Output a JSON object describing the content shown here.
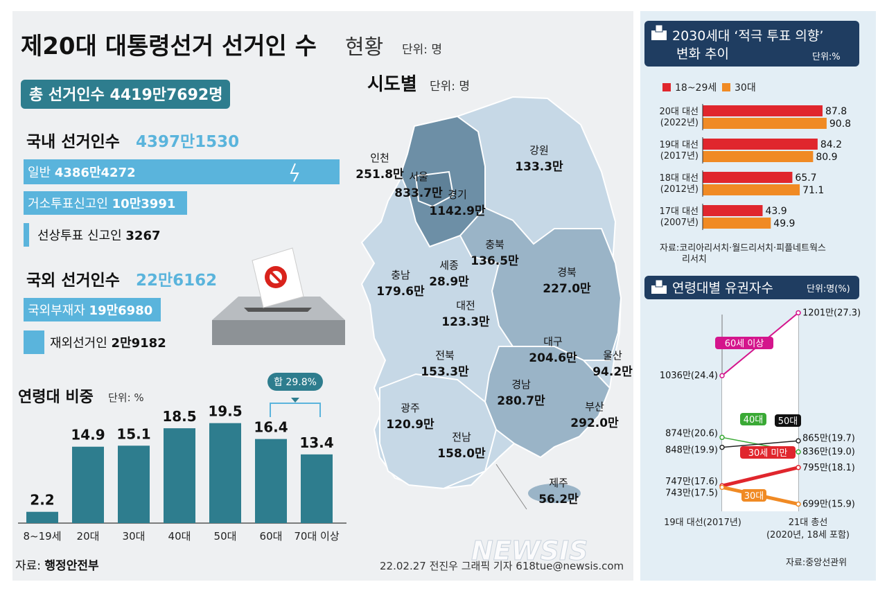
{
  "title": {
    "main": "제20대 대통령선거 선거인 수",
    "sub": "현황",
    "unit": "단위: 명"
  },
  "total": {
    "label": "총 선거인수 4419만7692명"
  },
  "domestic": {
    "label": "국내 선거인수",
    "value": "4397만1530",
    "items": [
      {
        "label": "일반",
        "value": "4386만4272"
      },
      {
        "label": "거소투표신고인",
        "value": "10만3991"
      },
      {
        "label": "선상투표 신고인",
        "value": "3267"
      }
    ]
  },
  "overseas": {
    "label": "국외 선거인수",
    "value": "22만6162",
    "items": [
      {
        "label": "국외부재자",
        "value": "19만6980"
      },
      {
        "label": "재외선거인",
        "value": "2만9182"
      }
    ]
  },
  "age_share": {
    "title": "연령대 비중",
    "unit": "단위: %",
    "sum_note": "합 29.8%"
  },
  "map": {
    "title": "시도별",
    "unit": "단위: 명",
    "regions": [
      {
        "name": "인천",
        "value": "251.8만"
      },
      {
        "name": "서울",
        "value": "833.7만"
      },
      {
        "name": "경기",
        "value": "1142.9만"
      },
      {
        "name": "강원",
        "value": "133.3만"
      },
      {
        "name": "충북",
        "value": "136.5만"
      },
      {
        "name": "충남",
        "value": "179.6만"
      },
      {
        "name": "세종",
        "value": "28.9만"
      },
      {
        "name": "대전",
        "value": "123.3만"
      },
      {
        "name": "경북",
        "value": "227.0만"
      },
      {
        "name": "대구",
        "value": "204.6만"
      },
      {
        "name": "울산",
        "value": "94.2만"
      },
      {
        "name": "전북",
        "value": "153.3만"
      },
      {
        "name": "경남",
        "value": "280.7만"
      },
      {
        "name": "부산",
        "value": "292.0만"
      },
      {
        "name": "광주",
        "value": "120.9만"
      },
      {
        "name": "전남",
        "value": "158.0만"
      },
      {
        "name": "제주",
        "value": "56.2만"
      }
    ]
  },
  "intent": {
    "title1": "2030세대 ‘적극 투표 의향’",
    "title2": "변화 추이",
    "unit": "단위:%",
    "source": "자료:코리아리서치·월드리서치·피플네트웍스",
    "source2": "리서치"
  },
  "voters": {
    "title": "연령대별 유권자수",
    "unit": "단위:명(%)",
    "source": "자료:중앙선관위",
    "x_left": "19대 대선(2017년)",
    "x_right1": "21대 총선",
    "x_right2": "(2020년, 18세 포함)"
  },
  "footer": {
    "source_label": "자료:",
    "source_value": "행정안전부",
    "credit": "22.02.27 전진우 그래픽 기자 618tue@newsis.com",
    "watermark": "NEWSIS"
  },
  "colors": {
    "teal": "#2e7d8e",
    "light_blue": "#5ab4dc",
    "map_dark": "#6d8fa6",
    "map_mid": "#9ab4c7",
    "map_light": "#c6d8e6",
    "red": "#e0262d",
    "orange": "#f08a24",
    "magenta": "#d4158c",
    "green": "#3aa935",
    "panel": "#e3eef5",
    "header_dark": "#1f3d61"
  },
  "chart_data": [
    {
      "type": "bar",
      "title": "연령대 비중",
      "categories": [
        "8~19세",
        "20대",
        "30대",
        "40대",
        "50대",
        "60대",
        "70대 이상"
      ],
      "values": [
        2.2,
        14.9,
        15.1,
        18.5,
        19.5,
        16.4,
        13.4
      ],
      "ylim": [
        0,
        22
      ]
    },
    {
      "type": "bar",
      "orientation": "horizontal",
      "categories": [
        [
          "20대 대선",
          "(2022년)"
        ],
        [
          "19대 대선",
          "(2017년)"
        ],
        [
          "18대 대선",
          "(2012년)"
        ],
        [
          "17대 대선",
          "(2007년)"
        ]
      ],
      "series": [
        {
          "name": "18~29세",
          "values": [
            87.8,
            84.2,
            65.7,
            43.9
          ]
        },
        {
          "name": "30대",
          "values": [
            90.8,
            80.9,
            71.1,
            49.9
          ]
        }
      ],
      "xlim": [
        0,
        100
      ]
    },
    {
      "type": "line",
      "title": "연령대별 유권자수",
      "x": [
        "19대 대선(2017년)",
        "21대 총선 (2020년, 18세 포함)"
      ],
      "series": [
        {
          "name": "60세 이상",
          "values": [
            1036,
            1201
          ],
          "labels": [
            "1036만(24.4)",
            "1201만(27.3)"
          ]
        },
        {
          "name": "40대",
          "values": [
            874,
            836
          ],
          "labels": [
            "874만(20.6)",
            "836만(19.0)"
          ]
        },
        {
          "name": "50대",
          "values": [
            848,
            865
          ],
          "labels": [
            "848만(19.9)",
            "865만(19.7)"
          ]
        },
        {
          "name": "30세 미만",
          "values": [
            747,
            795
          ],
          "labels": [
            "747만(17.6)",
            "795만(18.1)"
          ]
        },
        {
          "name": "30대",
          "values": [
            743,
            699
          ],
          "labels": [
            "743만(17.5)",
            "699만(15.9)"
          ]
        }
      ]
    }
  ]
}
